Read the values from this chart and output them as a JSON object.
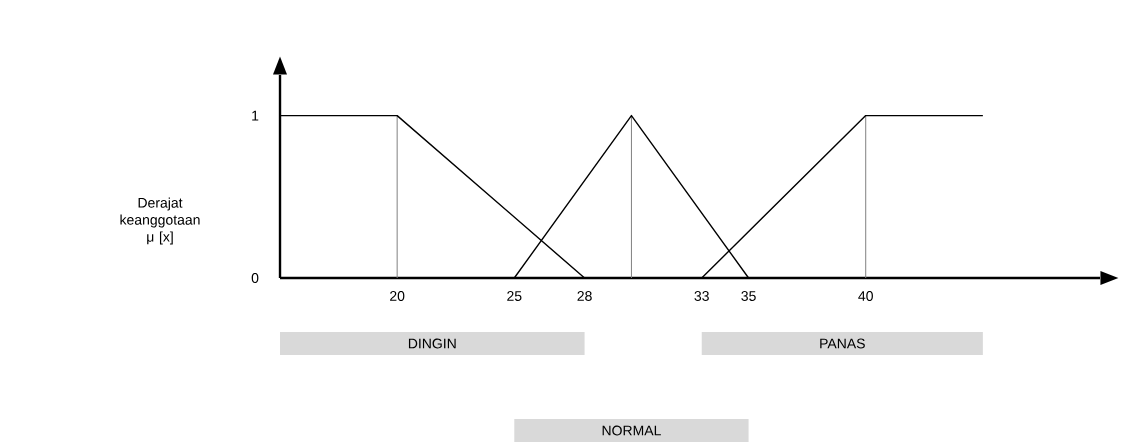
{
  "chart_data": {
    "type": "line",
    "ylabel": "Derajat keanggotaan μ [x]",
    "series": [
      {
        "x": [
          15,
          20,
          28
        ],
        "values": [
          1,
          1,
          0
        ],
        "color": "#000000"
      },
      {
        "x": [
          33,
          40,
          45
        ],
        "values": [
          0,
          1,
          1
        ],
        "color": "#000000"
      },
      {
        "x": [
          25,
          30,
          35
        ],
        "values": [
          0,
          1,
          0
        ],
        "color": "#000000"
      }
    ],
    "annotations": [
      "DINGIN",
      "PANAS",
      "NORMAL"
    ],
    "xlim": [
      15,
      50
    ],
    "ylim": [
      0,
      1.25
    ],
    "xticks": [
      20,
      25,
      28,
      33,
      35,
      40
    ],
    "yticks": [
      0,
      1
    ],
    "ref_lines": [
      {
        "axis": "x",
        "value": 20,
        "color": "#808080"
      },
      {
        "axis": "x",
        "value": 30,
        "color": "#808080"
      },
      {
        "axis": "x",
        "value": 40,
        "color": "#808080"
      }
    ]
  }
}
